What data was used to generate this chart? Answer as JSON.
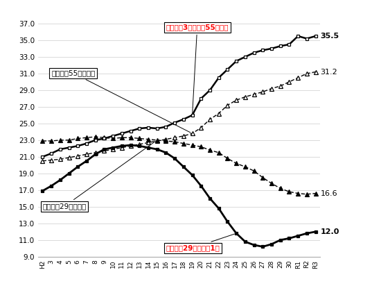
{
  "x_labels": [
    "H2",
    "3",
    "4",
    "5",
    "6",
    "7",
    "8",
    "9",
    "10",
    "11",
    "12",
    "13",
    "14",
    "15",
    "16",
    "17",
    "18",
    "19",
    "20",
    "21",
    "22",
    "23",
    "24",
    "25",
    "26",
    "27",
    "28",
    "29",
    "30",
    "R1",
    "R2",
    "R3"
  ],
  "kensetsu_55": [
    21.0,
    21.4,
    21.9,
    22.1,
    22.3,
    22.6,
    23.0,
    23.2,
    23.5,
    23.8,
    24.1,
    24.4,
    24.5,
    24.4,
    24.6,
    25.1,
    25.5,
    26.0,
    28.0,
    29.0,
    30.5,
    31.5,
    32.5,
    33.0,
    33.5,
    33.8,
    34.0,
    34.3,
    34.5,
    35.5,
    35.2,
    35.5
  ],
  "zensangyo_55": [
    20.5,
    20.6,
    20.7,
    20.9,
    21.1,
    21.3,
    21.5,
    21.7,
    21.9,
    22.1,
    22.3,
    22.5,
    22.7,
    22.9,
    23.1,
    23.3,
    23.5,
    23.8,
    24.5,
    25.5,
    26.2,
    27.2,
    27.8,
    28.2,
    28.5,
    28.8,
    29.2,
    29.5,
    30.0,
    30.5,
    31.0,
    31.2
  ],
  "zensangyo_29": [
    22.9,
    22.9,
    23.0,
    23.0,
    23.2,
    23.3,
    23.4,
    23.3,
    23.2,
    23.3,
    23.3,
    23.2,
    23.1,
    23.0,
    22.9,
    22.8,
    22.6,
    22.4,
    22.2,
    21.8,
    21.5,
    20.8,
    20.2,
    19.8,
    19.3,
    18.5,
    17.8,
    17.2,
    16.8,
    16.6,
    16.5,
    16.6
  ],
  "kensetsu_29": [
    16.9,
    17.5,
    18.2,
    19.0,
    19.8,
    20.5,
    21.3,
    21.9,
    22.1,
    22.3,
    22.4,
    22.3,
    22.1,
    21.9,
    21.5,
    20.8,
    19.8,
    18.8,
    17.5,
    16.0,
    14.8,
    13.2,
    11.8,
    10.8,
    10.4,
    10.2,
    10.5,
    11.0,
    11.2,
    11.5,
    11.8,
    12.0
  ],
  "annotation_top": "建設業：3割以上が55歳以上",
  "annotation_bottom": "建設業：29歳以下は1割",
  "label_zensangyo55": "全産業（55歳以上）",
  "label_zensangyo29": "全産業（29歳以下）",
  "end_label_kensetsu55": "35.5",
  "end_label_zensangyo55": "31.2",
  "end_label_zensangyo29": "16.6",
  "end_label_kensetsu29": "12.0",
  "ylim": [
    9.0,
    37.0
  ],
  "yticks": [
    9.0,
    11.0,
    13.0,
    15.0,
    17.0,
    19.0,
    21.0,
    23.0,
    25.0,
    27.0,
    29.0,
    31.0,
    33.0,
    35.0,
    37.0
  ],
  "annotation_color": "#ff0000",
  "box_color": "#ffffff",
  "box_edge_color": "#000000"
}
